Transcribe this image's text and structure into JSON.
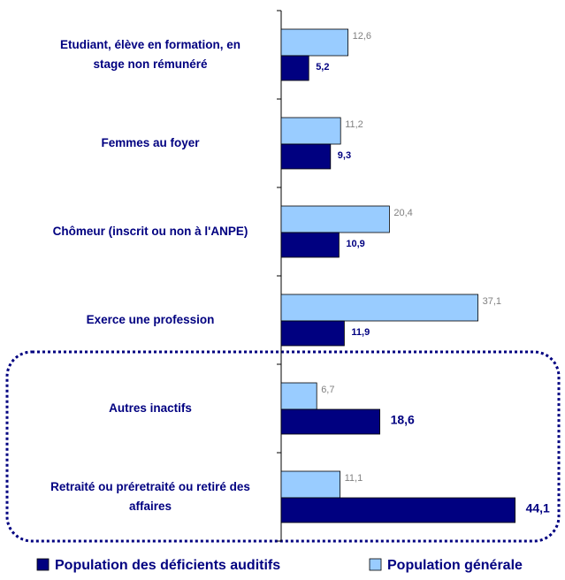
{
  "chart_data": {
    "type": "bar",
    "orientation": "horizontal",
    "categories": [
      "Etudiant, élève en formation, en\nstage non rémunéré",
      "Femmes au foyer",
      "Chômeur (inscrit ou non à l'ANPE)",
      "Exerce une profession",
      "Autres inactifs",
      "Retraité ou préretraité ou retiré des\naffaires"
    ],
    "series": [
      {
        "name": "Population générale",
        "color": "#99ccff",
        "values": [
          12.6,
          11.2,
          20.4,
          37.1,
          6.7,
          11.1
        ],
        "value_labels": [
          "12,6",
          "11,2",
          "20,4",
          "37,1",
          "6,7",
          "11,1"
        ]
      },
      {
        "name": "Population des déficients auditifs",
        "color": "#000080",
        "values": [
          5.2,
          9.3,
          10.9,
          11.9,
          18.6,
          44.1
        ],
        "value_labels": [
          "5,2",
          "9,3",
          "10,9",
          "11,9",
          "18,6",
          "44,1"
        ]
      }
    ],
    "xlim": [
      0,
      50
    ]
  }
}
